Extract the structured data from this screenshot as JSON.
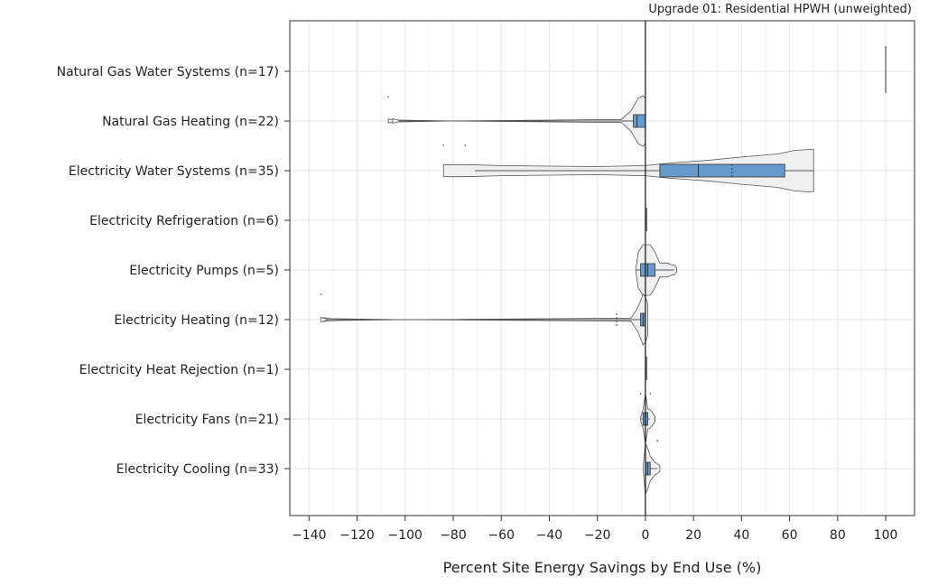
{
  "chart_data": {
    "type": "violin",
    "subtitle": "Upgrade 01: Residential HPWH (unweighted)",
    "xlabel": "Percent Site Energy Savings by End Use (%)",
    "ylabel": "",
    "xlim": [
      -148,
      112
    ],
    "xticks": [
      -140,
      -120,
      -100,
      -80,
      -60,
      -40,
      -20,
      0,
      20,
      40,
      60,
      80,
      100
    ],
    "xtick_labels": [
      "−140",
      "−120",
      "−100",
      "−80",
      "−60",
      "−40",
      "−20",
      "0",
      "20",
      "40",
      "60",
      "80",
      "100"
    ],
    "grid": true,
    "box_color": "#6699cc",
    "violin_color": "#f0f0f0",
    "categories": [
      {
        "label": "Natural Gas Water Systems  (n=17)",
        "violin": [
          [
            100,
            0.0
          ]
        ],
        "vertical_line": [
          100,
          0.5
        ],
        "box": null,
        "outliers": []
      },
      {
        "label": "Natural Gas Heating  (n=22)",
        "violin": [
          [
            -107,
            0.04
          ],
          [
            -104,
            0.02
          ],
          [
            -80,
            0.0
          ],
          [
            -10,
            0.03
          ],
          [
            -6,
            0.2
          ],
          [
            -3,
            0.45
          ],
          [
            -1,
            0.5
          ],
          [
            0,
            0.45
          ]
        ],
        "box": {
          "q1": -5,
          "median": -3.5,
          "q3": 0,
          "whisker_low": -104,
          "whisker_high": 0
        },
        "outliers": [
          {
            "x": -107,
            "dy": -0.48
          }
        ]
      },
      {
        "label": "Electricity Water Systems  (n=35)",
        "violin": [
          [
            -84,
            0.12
          ],
          [
            -75,
            0.12
          ],
          [
            -60,
            0.1
          ],
          [
            -40,
            0.09
          ],
          [
            -20,
            0.08
          ],
          [
            0,
            0.1
          ],
          [
            10,
            0.15
          ],
          [
            25,
            0.2
          ],
          [
            40,
            0.27
          ],
          [
            55,
            0.33
          ],
          [
            62,
            0.4
          ],
          [
            68,
            0.42
          ],
          [
            70,
            0.42
          ]
        ],
        "box": {
          "q1": 6,
          "median": 22,
          "q3": 58,
          "whisker_low": -71,
          "whisker_high": 70,
          "mean": 36
        },
        "outliers": [
          {
            "x": -84,
            "dy": -0.5
          },
          {
            "x": -75,
            "dy": -0.5
          }
        ]
      },
      {
        "label": "Electricity Refrigeration  (n=6)",
        "violin": [
          [
            0,
            0.0
          ]
        ],
        "vertical_line": [
          0.5,
          0.25
        ],
        "box": null,
        "outliers": []
      },
      {
        "label": "Electricity Pumps  (n=5)",
        "violin": [
          [
            -4,
            0.02
          ],
          [
            -3,
            0.35
          ],
          [
            -1,
            0.5
          ],
          [
            2,
            0.5
          ],
          [
            4,
            0.35
          ],
          [
            6,
            0.14
          ],
          [
            9,
            0.14
          ],
          [
            11,
            0.1
          ],
          [
            12,
            0.1
          ],
          [
            13,
            0.04
          ]
        ],
        "box": {
          "q1": -2,
          "median": 1,
          "q3": 4,
          "whisker_low": -4,
          "whisker_high": 12
        },
        "outliers": []
      },
      {
        "label": "Electricity Heating  (n=12)",
        "violin": [
          [
            -134,
            0.04
          ],
          [
            -131,
            0.02
          ],
          [
            -100,
            0.0
          ],
          [
            -6,
            0.03
          ],
          [
            -3,
            0.25
          ],
          [
            -1,
            0.5
          ],
          [
            0,
            0.45
          ],
          [
            1,
            0.3
          ]
        ],
        "box": {
          "q1": -2,
          "median": -1,
          "q3": 0,
          "whisker_low": -134,
          "whisker_high": 0,
          "mean": -12
        },
        "outliers": [
          {
            "x": -135,
            "dy": -0.5
          }
        ]
      },
      {
        "label": "Electricity Heat Rejection  (n=1)",
        "violin": [
          [
            0,
            0.0
          ]
        ],
        "vertical_line": [
          0.5,
          0.25
        ],
        "box": null,
        "outliers": []
      },
      {
        "label": "Electricity Fans  (n=21)",
        "violin": [
          [
            -2,
            0.03
          ],
          [
            -1,
            0.18
          ],
          [
            0,
            0.5
          ],
          [
            1,
            0.2
          ],
          [
            2,
            0.18
          ],
          [
            3,
            0.12
          ],
          [
            4,
            0.05
          ]
        ],
        "box": {
          "q1": -1,
          "median": 0,
          "q3": 1,
          "whisker_low": -2,
          "whisker_high": 2
        },
        "outliers": [
          {
            "x": -2,
            "dy": -0.5
          },
          {
            "x": 2,
            "dy": -0.5
          }
        ]
      },
      {
        "label": "Electricity Cooling  (n=33)",
        "violin": [
          [
            -1,
            0.0
          ],
          [
            0,
            0.5
          ],
          [
            1,
            0.4
          ],
          [
            2,
            0.25
          ],
          [
            3,
            0.18
          ],
          [
            4,
            0.12
          ],
          [
            5,
            0.1
          ],
          [
            6,
            0.05
          ]
        ],
        "box": {
          "q1": 0,
          "median": 1,
          "q3": 2,
          "whisker_low": 0,
          "whisker_high": 5
        },
        "outliers": [
          {
            "x": 5,
            "dy": -0.55
          }
        ]
      }
    ]
  }
}
